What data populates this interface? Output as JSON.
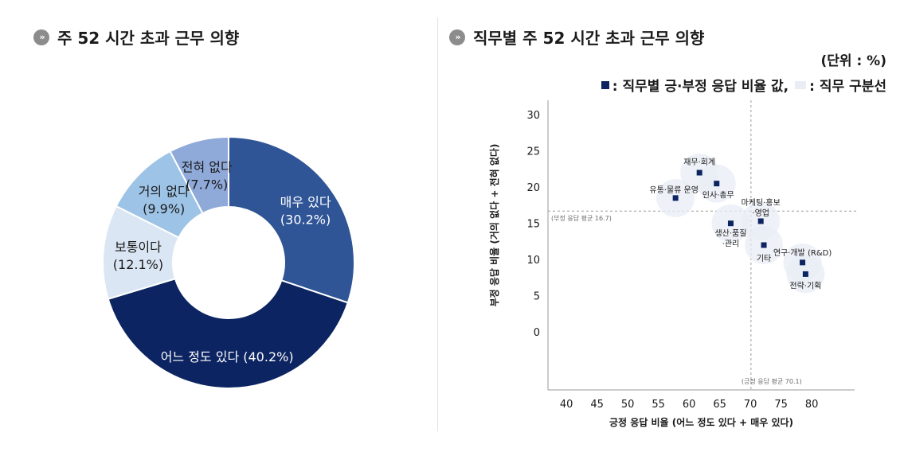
{
  "left": {
    "title": "주 52 시간 초과 근무 의향"
  },
  "right": {
    "title": "직무별 주 52 시간 초과 근무 의향",
    "unit": "(단위 : %)",
    "legend_points": ": 직무별 긍·부정 응답 비율 값,",
    "legend_lines": ": 직무 구분선"
  },
  "colors": {
    "dark_navy": "#0c2461",
    "blue": "#2f5597",
    "light_blue": "#9dc3e6",
    "pale_blue": "#dae6f4",
    "periwinkle": "#8fa9d9"
  },
  "chart_data": [
    {
      "type": "pie",
      "donut": true,
      "slices": [
        {
          "label": "매우 있다",
          "value": 30.2,
          "display": "(30.2%)",
          "color": "#2f5597"
        },
        {
          "label": "어느 정도 있다",
          "value": 40.2,
          "display": "(40.2%)",
          "color": "#0c2461"
        },
        {
          "label": "보통이다",
          "value": 12.1,
          "display": "(12.1%)",
          "color": "#dae6f4"
        },
        {
          "label": "거의 없다",
          "value": 9.9,
          "display": "(9.9%)",
          "color": "#9dc3e6"
        },
        {
          "label": "전혀 없다",
          "value": 7.7,
          "display": "(7.7%)",
          "color": "#8fa9d9"
        }
      ]
    },
    {
      "type": "scatter",
      "xlabel": "긍정 응답 비율 (어느 정도 있다 + 매우 있다)",
      "ylabel": "부정 응답 비율 (거의 없다 + 전혀 없다)",
      "xlim": [
        37,
        87
      ],
      "ylim": [
        -8,
        32
      ],
      "xticks": [
        40,
        45,
        50,
        55,
        60,
        65,
        70,
        75,
        80
      ],
      "yticks": [
        0,
        5,
        10,
        15,
        20,
        25,
        30
      ],
      "reference_lines": [
        {
          "axis": "y",
          "value": 16.7,
          "label": "(부정 응답 평균 16.7)"
        },
        {
          "axis": "x",
          "value": 70.1,
          "label": "(긍정 응답 평균 70.1)"
        }
      ],
      "points": [
        {
          "label": "재무·회계",
          "x": 61.7,
          "y": 22.0
        },
        {
          "label": "인사·총무",
          "x": 64.5,
          "y": 20.5
        },
        {
          "label": "유통·물류 운영",
          "x": 57.8,
          "y": 18.5
        },
        {
          "label": "마케팅·홍보·영업",
          "x": 71.7,
          "y": 15.3
        },
        {
          "label": "생산·품질·관리",
          "x": 66.8,
          "y": 15.0
        },
        {
          "label": "기타",
          "x": 72.2,
          "y": 12.0
        },
        {
          "label": "연구·개발 (R&D)",
          "x": 78.5,
          "y": 9.6
        },
        {
          "label": "전략·기획",
          "x": 79.0,
          "y": 8.0
        }
      ]
    }
  ]
}
